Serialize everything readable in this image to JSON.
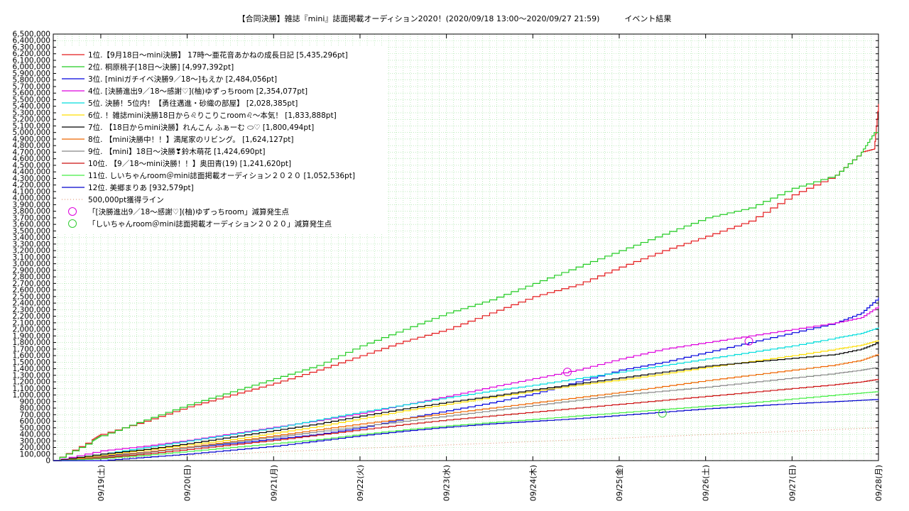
{
  "chart_data": {
    "type": "line",
    "title": "【合同決勝】雑誌『mini』誌面掲載オーディション2020！(2020/09/18 13:00〜2020/09/27 21:59)          イベント結果",
    "xlabel": "",
    "ylabel": "",
    "ylim": [
      0,
      6500000
    ],
    "y_tick_step": 100000,
    "x_ticks": [
      "09/19(土)",
      "09/20(日)",
      "09/21(月)",
      "09/22(火)",
      "09/23(水)",
      "09/24(木)",
      "09/25(金)",
      "09/26(土)",
      "09/27(日)",
      "09/28(月)"
    ],
    "x_range_days": [
      -0.55,
      9.0
    ],
    "grid": true,
    "legend_position": "top-left",
    "series": [
      {
        "name": "1位.【9月18日〜mini決勝】 17時〜亜花音あかねの成長日記 [5,435,296pt]",
        "color": "#e41a1c",
        "x": [
          -0.55,
          -0.1,
          0.0,
          0.5,
          1.0,
          1.5,
          2.0,
          2.5,
          3.0,
          3.5,
          4.0,
          4.5,
          5.0,
          5.5,
          6.0,
          6.5,
          7.0,
          7.5,
          8.0,
          8.5,
          8.8,
          8.95,
          9.0
        ],
        "y": [
          0,
          320000,
          400000,
          600000,
          820000,
          1000000,
          1180000,
          1380000,
          1600000,
          1820000,
          2000000,
          2250000,
          2500000,
          2680000,
          2950000,
          3200000,
          3420000,
          3650000,
          4050000,
          4350000,
          4700000,
          4750000,
          5435296
        ]
      },
      {
        "name": "2位. 桐原桃子[18日〜決勝] [4,997,392pt]",
        "color": "#22cc22",
        "x": [
          -0.55,
          -0.1,
          0.0,
          0.5,
          1.0,
          1.5,
          2.0,
          2.5,
          3.0,
          3.5,
          4.0,
          4.5,
          5.0,
          5.5,
          6.0,
          6.5,
          7.0,
          7.5,
          8.0,
          8.5,
          8.8,
          8.95,
          9.0
        ],
        "y": [
          0,
          300000,
          380000,
          620000,
          850000,
          1050000,
          1250000,
          1450000,
          1750000,
          2000000,
          2250000,
          2450000,
          2700000,
          2950000,
          3200000,
          3450000,
          3700000,
          3850000,
          4150000,
          4350000,
          4700000,
          5000000,
          4997392
        ]
      },
      {
        "name": "3位. [miniガチイベ決勝9／18〜]もえか [2,484,056pt]",
        "color": "#0000dd",
        "x": [
          -0.55,
          0.0,
          0.5,
          1.0,
          1.5,
          2.0,
          2.5,
          3.0,
          3.5,
          4.0,
          4.5,
          5.0,
          5.5,
          6.0,
          6.5,
          7.0,
          7.5,
          8.0,
          8.5,
          8.8,
          9.0
        ],
        "y": [
          0,
          70000,
          130000,
          200000,
          260000,
          330000,
          400000,
          500000,
          640000,
          760000,
          880000,
          1020000,
          1200000,
          1380000,
          1500000,
          1650000,
          1800000,
          1950000,
          2100000,
          2250000,
          2484056
        ]
      },
      {
        "name": "4位. [決勝進出9／18〜感謝♡](柚)ゆずっちroom [2,354,077pt]",
        "color": "#dd00dd",
        "x": [
          -0.55,
          0.0,
          0.5,
          1.0,
          1.5,
          2.0,
          2.5,
          3.0,
          3.5,
          4.0,
          4.5,
          5.0,
          5.5,
          6.0,
          6.5,
          7.0,
          7.5,
          8.0,
          8.5,
          8.8,
          9.0
        ],
        "y": [
          0,
          150000,
          220000,
          310000,
          410000,
          510000,
          610000,
          720000,
          850000,
          980000,
          1120000,
          1250000,
          1380000,
          1550000,
          1700000,
          1800000,
          1900000,
          2000000,
          2100000,
          2180000,
          2354077
        ]
      },
      {
        "name": "5位. 決勝！5位内！【勇往邁進・砂織の部屋】 [2,028,385pt]",
        "color": "#00dddd",
        "x": [
          -0.55,
          0.0,
          0.5,
          1.0,
          1.5,
          2.0,
          2.5,
          3.0,
          3.5,
          4.0,
          4.5,
          5.0,
          5.5,
          6.0,
          6.5,
          7.0,
          7.5,
          8.0,
          8.5,
          8.8,
          9.0
        ],
        "y": [
          0,
          100000,
          200000,
          300000,
          400000,
          500000,
          620000,
          740000,
          850000,
          960000,
          1060000,
          1150000,
          1250000,
          1350000,
          1450000,
          1550000,
          1650000,
          1750000,
          1870000,
          1940000,
          2028385
        ]
      },
      {
        "name": "6位. ！雑誌mini決勝18日から♌りこりこroom♌〜本気！ [1,833,888pt]",
        "color": "#ffdd00",
        "x": [
          -0.55,
          0.0,
          0.5,
          1.0,
          1.5,
          2.0,
          2.5,
          3.0,
          3.5,
          4.0,
          4.5,
          5.0,
          5.5,
          6.0,
          6.5,
          7.0,
          7.5,
          8.0,
          8.5,
          8.8,
          9.0
        ],
        "y": [
          0,
          80000,
          160000,
          240000,
          320000,
          420000,
          520000,
          640000,
          760000,
          860000,
          960000,
          1060000,
          1150000,
          1230000,
          1320000,
          1420000,
          1510000,
          1600000,
          1700000,
          1760000,
          1833888
        ]
      },
      {
        "name": "7位. 【18日からmini決勝】れんこん ふぁーむ ⬭♡ [1,800,494pt]",
        "color": "#000000",
        "x": [
          -0.55,
          0.0,
          0.5,
          1.0,
          1.5,
          2.0,
          2.5,
          3.0,
          3.5,
          4.0,
          4.5,
          5.0,
          5.5,
          6.0,
          6.5,
          7.0,
          7.5,
          8.0,
          8.5,
          8.8,
          9.0
        ],
        "y": [
          0,
          100000,
          170000,
          260000,
          360000,
          460000,
          560000,
          680000,
          790000,
          890000,
          980000,
          1080000,
          1170000,
          1260000,
          1350000,
          1440000,
          1500000,
          1560000,
          1620000,
          1700000,
          1800494
        ]
      },
      {
        "name": "8位. 【mini決勝中！！】満尾家のリビング。 [1,624,127pt]",
        "color": "#ee6600",
        "x": [
          -0.55,
          0.0,
          0.5,
          1.0,
          1.5,
          2.0,
          2.5,
          3.0,
          3.5,
          4.0,
          4.5,
          5.0,
          5.5,
          6.0,
          6.5,
          7.0,
          7.5,
          8.0,
          8.5,
          8.8,
          9.0
        ],
        "y": [
          0,
          60000,
          130000,
          210000,
          290000,
          380000,
          470000,
          560000,
          640000,
          720000,
          800000,
          880000,
          960000,
          1040000,
          1130000,
          1220000,
          1300000,
          1380000,
          1460000,
          1530000,
          1624127
        ]
      },
      {
        "name": "9位. 【mini】18日〜決勝❣鈴木萌花 [1,424,690pt]",
        "color": "#888888",
        "x": [
          -0.55,
          0.0,
          0.5,
          1.0,
          1.5,
          2.0,
          2.5,
          3.0,
          3.5,
          4.0,
          4.5,
          5.0,
          5.5,
          6.0,
          6.5,
          7.0,
          7.5,
          8.0,
          8.5,
          8.8,
          9.0
        ],
        "y": [
          0,
          50000,
          120000,
          200000,
          280000,
          360000,
          440000,
          520000,
          600000,
          680000,
          760000,
          840000,
          920000,
          1000000,
          1060000,
          1120000,
          1190000,
          1260000,
          1330000,
          1380000,
          1424690
        ]
      },
      {
        "name": "10位. 【9／18〜mini決勝！！】奥田青(19) [1,241,620pt]",
        "color": "#cc1111",
        "x": [
          -0.55,
          0.0,
          0.5,
          1.0,
          1.5,
          2.0,
          2.5,
          3.0,
          3.5,
          4.0,
          4.5,
          5.0,
          5.5,
          6.0,
          6.5,
          7.0,
          7.5,
          8.0,
          8.5,
          8.8,
          9.0
        ],
        "y": [
          0,
          40000,
          100000,
          170000,
          240000,
          310000,
          390000,
          470000,
          550000,
          620000,
          680000,
          740000,
          800000,
          860000,
          920000,
          980000,
          1040000,
          1100000,
          1160000,
          1200000,
          1241620
        ]
      },
      {
        "name": "11位. しいちゃんroom＠mini誌面掲載オーディション２０２０ [1,052,536pt]",
        "color": "#44ee44",
        "x": [
          -0.55,
          0.0,
          0.5,
          1.0,
          1.5,
          2.0,
          2.5,
          3.0,
          3.5,
          4.0,
          4.5,
          5.0,
          5.5,
          6.0,
          6.5,
          7.0,
          7.5,
          8.0,
          8.5,
          8.8,
          9.0
        ],
        "y": [
          0,
          30000,
          80000,
          140000,
          200000,
          260000,
          320000,
          400000,
          470000,
          530000,
          580000,
          630000,
          680000,
          730000,
          780000,
          830000,
          880000,
          940000,
          1000000,
          1030000,
          1052536
        ]
      },
      {
        "name": "12位. 美郷まりあ [932,579pt]",
        "color": "#0000cc",
        "x": [
          -0.55,
          0.0,
          0.5,
          1.0,
          1.5,
          2.0,
          2.5,
          3.0,
          3.5,
          4.0,
          4.5,
          5.0,
          5.5,
          6.0,
          6.5,
          7.0,
          7.5,
          8.0,
          8.5,
          8.8,
          9.0
        ],
        "y": [
          0,
          0,
          50000,
          100000,
          160000,
          220000,
          300000,
          380000,
          450000,
          510000,
          560000,
          600000,
          640000,
          690000,
          740000,
          790000,
          830000,
          870000,
          900000,
          920000,
          932579
        ]
      }
    ],
    "target_line": {
      "name": "500,000pt獲得ライン",
      "color": "#dd8866",
      "x": [
        -0.55,
        9.0
      ],
      "y": [
        0,
        500000
      ]
    },
    "markers": [
      {
        "name": "「[決勝進出9／18〜感謝♡](柚)ゆずっちroom」減算発生点",
        "color": "#dd00dd",
        "points": [
          [
            5.4,
            1350000
          ],
          [
            7.5,
            1820000
          ]
        ]
      },
      {
        "name": "「しいちゃんroom＠mini誌面掲載オーディション２０２０」減算発生点",
        "color": "#33cc33",
        "points": [
          [
            6.5,
            720000
          ]
        ]
      }
    ]
  }
}
